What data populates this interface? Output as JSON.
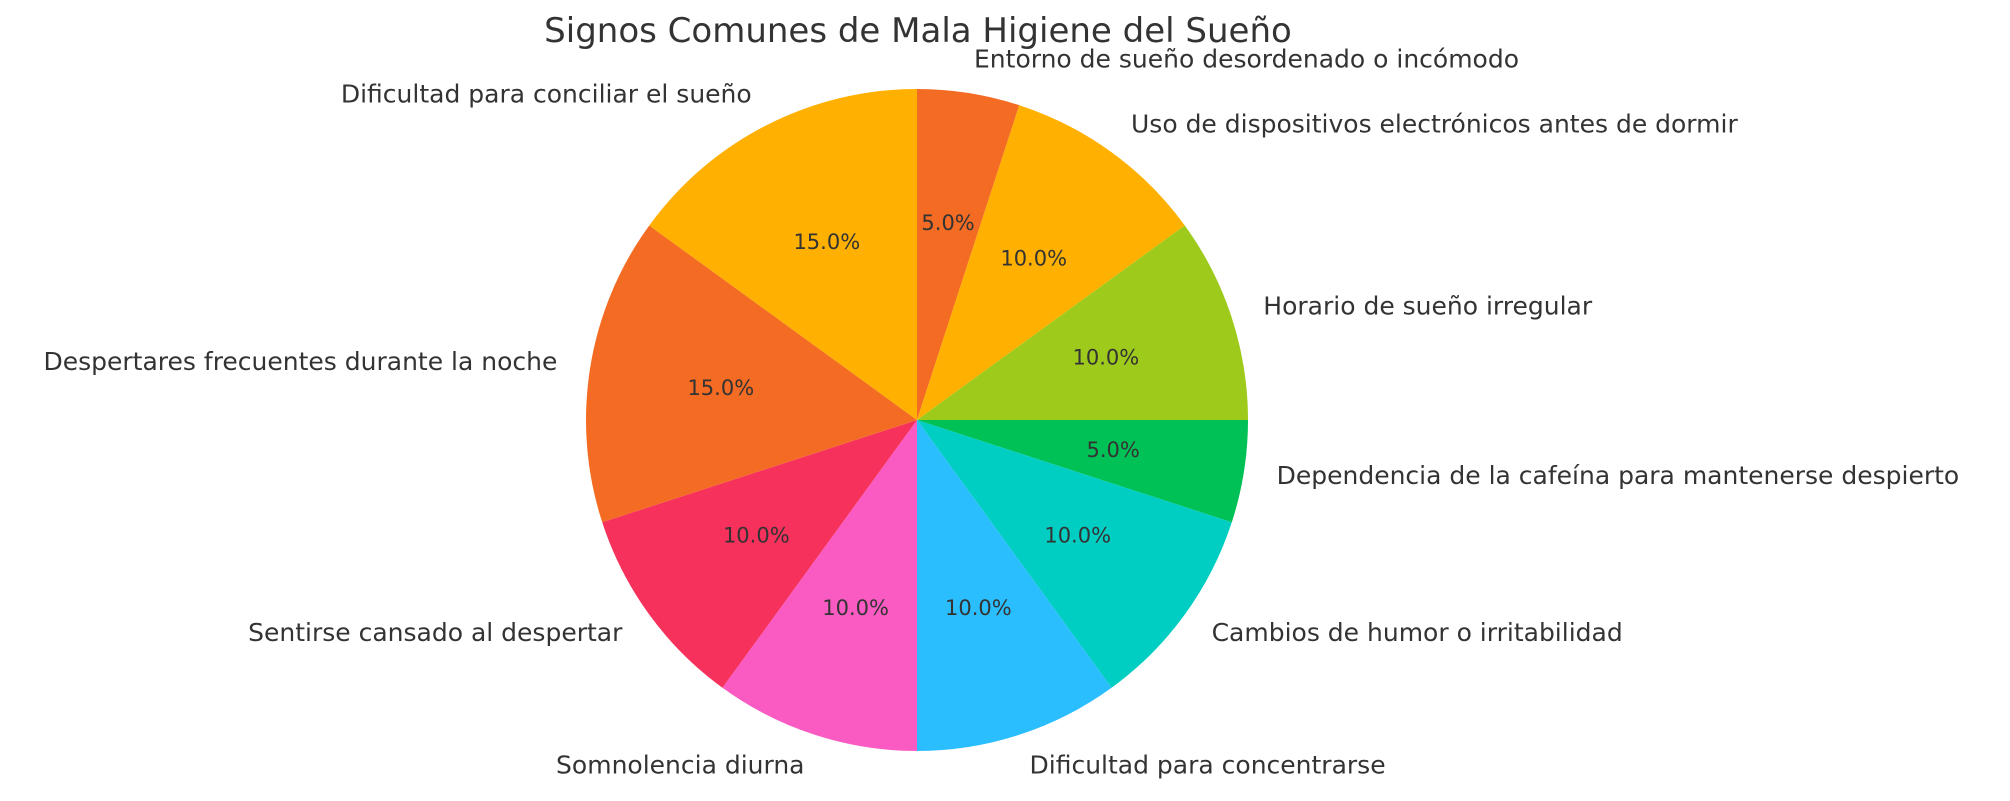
{
  "chart_data": {
    "type": "pie",
    "title": "Signos Comunes de Mala Higiene del Sueño",
    "start_angle_deg": 90,
    "direction": "clockwise",
    "legend": "none",
    "slices": [
      {
        "label": "Entorno de sueño desordenado o incómodo",
        "value": 5.0,
        "pct_label": "5.0%",
        "color": "#F46B23"
      },
      {
        "label": "Uso de dispositivos electrónicos antes de dormir",
        "value": 10.0,
        "pct_label": "10.0%",
        "color": "#FFB000"
      },
      {
        "label": "Horario de sueño irregular",
        "value": 10.0,
        "pct_label": "10.0%",
        "color": "#9ECA1C"
      },
      {
        "label": "Dependencia de la cafeína para mantenerse despierto",
        "value": 5.0,
        "pct_label": "5.0%",
        "color": "#00C155"
      },
      {
        "label": "Cambios de humor o irritabilidad",
        "value": 10.0,
        "pct_label": "10.0%",
        "color": "#00CEC2"
      },
      {
        "label": "Dificultad para concentrarse",
        "value": 10.0,
        "pct_label": "10.0%",
        "color": "#2ABEFF"
      },
      {
        "label": "Somnolencia diurna",
        "value": 10.0,
        "pct_label": "10.0%",
        "color": "#F95BC3"
      },
      {
        "label": "Sentirse cansado al despertar",
        "value": 10.0,
        "pct_label": "10.0%",
        "color": "#F5315C"
      },
      {
        "label": "Despertares frecuentes durante la noche",
        "value": 15.0,
        "pct_label": "15.0%",
        "color": "#F46B23"
      },
      {
        "label": "Dificultad para conciliar el sueño",
        "value": 15.0,
        "pct_label": "15.0%",
        "color": "#FFB000"
      }
    ]
  }
}
